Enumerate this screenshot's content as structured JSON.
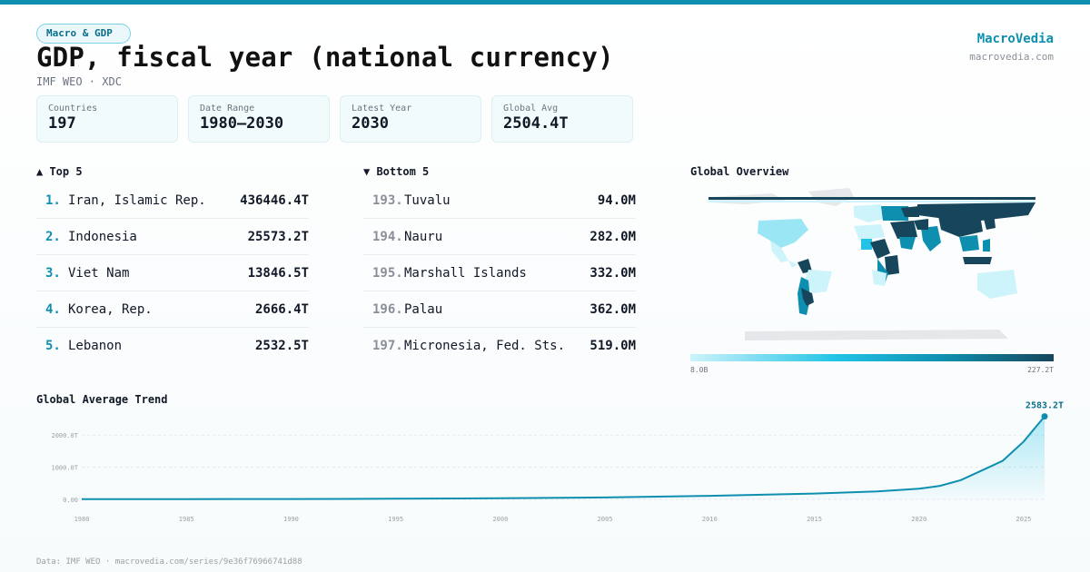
{
  "header": {
    "category": "Macro & GDP",
    "title": "GDP, fiscal year (national currency)",
    "subtitle": "IMF WEO · XDC"
  },
  "brand": {
    "name": "MacroVedia",
    "url": "macrovedia.com"
  },
  "stats": [
    {
      "label": "Countries",
      "value": "197"
    },
    {
      "label": "Date Range",
      "value": "1980–2030"
    },
    {
      "label": "Latest Year",
      "value": "2030"
    },
    {
      "label": "Global Avg",
      "value": "2504.4T"
    }
  ],
  "top5": {
    "heading": "▲ Top 5",
    "items": [
      {
        "rank": "1.",
        "name": "Iran, Islamic Rep.",
        "value": "436446.4T"
      },
      {
        "rank": "2.",
        "name": "Indonesia",
        "value": "25573.2T"
      },
      {
        "rank": "3.",
        "name": "Viet Nam",
        "value": "13846.5T"
      },
      {
        "rank": "4.",
        "name": "Korea, Rep.",
        "value": "2666.4T"
      },
      {
        "rank": "5.",
        "name": "Lebanon",
        "value": "2532.5T"
      }
    ]
  },
  "bottom5": {
    "heading": "▼ Bottom 5",
    "items": [
      {
        "rank": "193.",
        "name": "Tuvalu",
        "value": "94.0M"
      },
      {
        "rank": "194.",
        "name": "Nauru",
        "value": "282.0M"
      },
      {
        "rank": "195.",
        "name": "Marshall Islands",
        "value": "332.0M"
      },
      {
        "rank": "196.",
        "name": "Palau",
        "value": "362.0M"
      },
      {
        "rank": "197.",
        "name": "Micronesia, Fed. Sts.",
        "value": "519.0M"
      }
    ]
  },
  "map": {
    "heading": "Global Overview",
    "legend_min": "8.0B",
    "legend_max": "227.2T",
    "colors": {
      "light": "#cdf3fb",
      "mid": "#22c3e6",
      "teal": "#0e8fb0",
      "dark": "#17465c",
      "nodata": "#e5e7eb"
    }
  },
  "trend": {
    "heading": "Global Average Trend",
    "last_label": "2583.2T",
    "line_color": "#0e8fb0"
  },
  "chart_data": {
    "type": "area",
    "title": "Global Average Trend",
    "xlabel": "",
    "ylabel": "",
    "x_ticks": [
      "1980",
      "1985",
      "1990",
      "1995",
      "2000",
      "2005",
      "2010",
      "2015",
      "2020",
      "2025"
    ],
    "y_ticks": [
      "0.00",
      "1000.0T",
      "2000.0T"
    ],
    "ylim": [
      0,
      2600
    ],
    "xlim": [
      1980,
      2026
    ],
    "unit": "T",
    "x": [
      1980,
      1985,
      1990,
      1995,
      2000,
      2005,
      2010,
      2015,
      2018,
      2020,
      2021,
      2022,
      2023,
      2024,
      2025,
      2026
    ],
    "values": [
      5,
      8,
      12,
      20,
      35,
      60,
      110,
      180,
      250,
      330,
      420,
      600,
      900,
      1200,
      1800,
      2583.2
    ],
    "grid": true,
    "last_point_label": "2583.2T"
  },
  "footer": "Data: IMF WEO · macrovedia.com/series/9e36f76966741d88"
}
